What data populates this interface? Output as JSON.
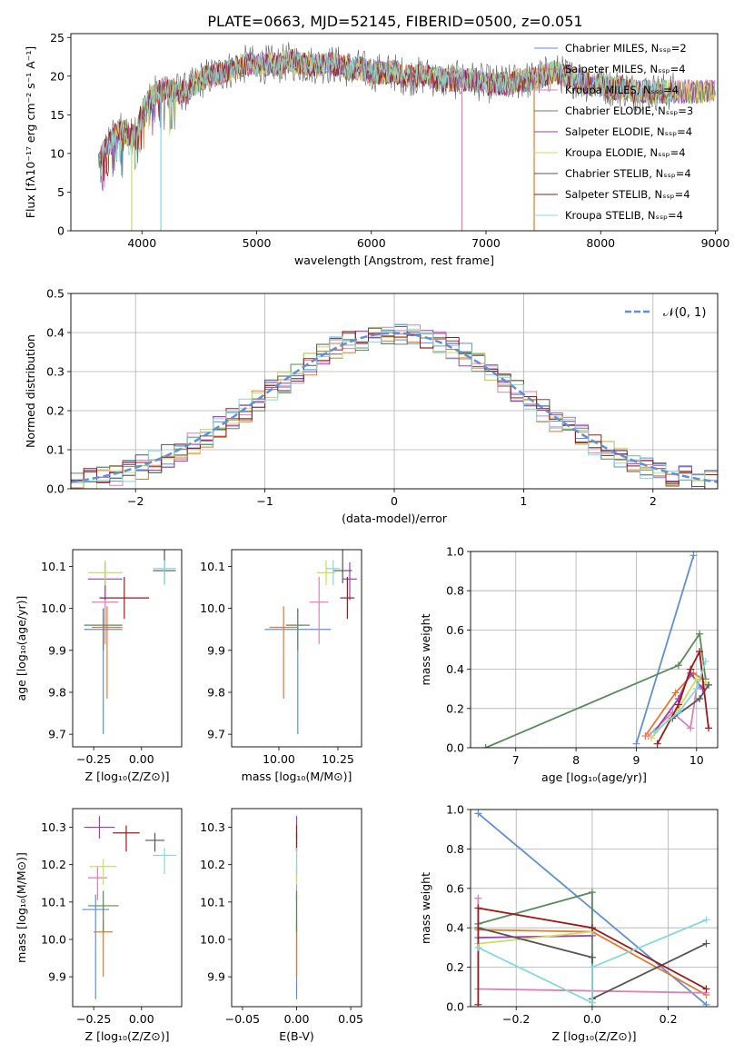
{
  "title": "PLATE=0663, MJD=52145, FIBERID=0500, z=0.051",
  "colors": [
    "#5f8fd8",
    "#e6782a",
    "#dd7fb8",
    "#5a8a5a",
    "#9a3fb8",
    "#c8e05a",
    "#555555",
    "#a01818",
    "#86d8dc"
  ],
  "chart_data": [
    {
      "type": "line",
      "id": "spectrum",
      "title": "PLATE=0663, MJD=52145, FIBERID=0500, z=0.051",
      "xlabel": "wavelength [Angstrom, rest frame]",
      "ylabel": "Flux [fλ10⁻¹⁷ erg cm⁻² s⁻¹ A⁻¹]",
      "xlim": [
        3380,
        9020
      ],
      "ylim": [
        0,
        25.5
      ],
      "xticks": [
        4000,
        5000,
        6000,
        7000,
        8000,
        9000
      ],
      "yticks": [
        0,
        5,
        10,
        15,
        20,
        25
      ],
      "grid": false,
      "legend_position": "top-right",
      "legend": [
        "Chabrier MILES, Nₛₛₚ=2",
        "Salpeter MILES, Nₛₛₚ=4",
        "Kroupa MILES, Nₛₛₚ=4",
        "Chabrier ELODIE, Nₛₛₚ=3",
        "Salpeter ELODIE, Nₛₛₚ=4",
        "Kroupa ELODIE, Nₛₛₚ=4",
        "Chabrier STELIB, Nₛₛₚ=4",
        "Salpeter STELIB, Nₛₛₚ=4",
        "Kroupa STELIB, Nₛₛₚ=4"
      ],
      "continuum": {
        "x": [
          3620,
          3700,
          3800,
          3900,
          3950,
          4000,
          4100,
          4200,
          4300,
          4400,
          4500,
          4600,
          4700,
          4800,
          4900,
          5000,
          5100,
          5200,
          5300,
          5400,
          5500,
          5600,
          5700,
          5800,
          5900,
          6000,
          6100,
          6200,
          6300,
          6400,
          6500,
          6600,
          6700,
          6800,
          6900,
          7000,
          7100,
          7200,
          7300,
          7400,
          7500,
          7600,
          7700,
          7800,
          7900,
          8000,
          8100,
          8200,
          8300,
          8400,
          8500,
          8600,
          8700,
          8800,
          8900,
          9000
        ],
        "y": [
          9,
          11,
          13,
          12.5,
          12,
          15.5,
          17.5,
          18.5,
          18,
          18,
          19.5,
          20,
          20.5,
          21,
          21.5,
          21.5,
          21.5,
          21.5,
          22,
          21.5,
          21.5,
          21.5,
          21.5,
          21,
          21,
          20.5,
          20.5,
          20.5,
          20,
          20,
          20,
          19.5,
          19.5,
          19.5,
          19.5,
          19,
          19,
          19,
          19.5,
          19.5,
          20,
          20.5,
          20,
          19.5,
          19,
          19,
          18.5,
          18.5,
          18,
          18,
          18,
          18,
          18,
          18,
          18,
          18
        ]
      },
      "stelib_end": 8650,
      "drops": [
        {
          "x": 3910,
          "to": 0
        },
        {
          "x": 4165,
          "to": 0
        },
        {
          "x": 6790,
          "to": 0
        },
        {
          "x": 7420,
          "to": 0
        }
      ]
    },
    {
      "type": "line",
      "id": "residuals",
      "xlabel": "(data-model)/error",
      "ylabel": "Normed distribution",
      "xlim": [
        -2.5,
        2.5
      ],
      "ylim": [
        0,
        0.5
      ],
      "xticks": [
        -2,
        -1,
        0,
        1,
        2
      ],
      "yticks": [
        0.0,
        0.1,
        0.2,
        0.3,
        0.4,
        0.5
      ],
      "grid": true,
      "legend_position": "top-right",
      "legend": [
        "𝒩(0, 1)"
      ],
      "bin_width": 0.1,
      "jitter": [
        0.03,
        -0.02,
        0.05,
        -0.04,
        0.02,
        -0.03,
        0.06,
        -0.01,
        0.01
      ]
    },
    {
      "type": "scatter",
      "id": "age-vs-Z",
      "xlabel": "Z [log₁₀(Z/Z⊙)]",
      "ylabel": "age  [log₁₀(age/yr)]",
      "xlim": [
        -0.36,
        0.21
      ],
      "ylim": [
        9.67,
        10.14
      ],
      "xticks": [
        -0.25,
        0.0
      ],
      "yticks": [
        9.7,
        9.8,
        9.9,
        10.0,
        10.1
      ],
      "grid": false,
      "points": [
        {
          "x": -0.2,
          "y": 9.95,
          "xerr": 0.1,
          "yerr": [
            0.25,
            0.05
          ]
        },
        {
          "x": -0.18,
          "y": 9.955,
          "xerr": 0.08,
          "yerr": [
            0.17,
            0.05
          ]
        },
        {
          "x": -0.19,
          "y": 10.015,
          "xerr": 0.07,
          "yerr": [
            0.1,
            0.06
          ]
        },
        {
          "x": -0.2,
          "y": 9.96,
          "xerr": 0.1,
          "yerr": [
            0.06,
            0.04
          ]
        },
        {
          "x": -0.19,
          "y": 10.07,
          "xerr": 0.09,
          "yerr": [
            0.05,
            0.04
          ]
        },
        {
          "x": -0.19,
          "y": 10.085,
          "xerr": 0.09,
          "yerr": [
            0.03,
            0.03
          ]
        },
        {
          "x": 0.12,
          "y": 10.09,
          "xerr": 0.06,
          "yerr": [
            0.03,
            0.05
          ]
        },
        {
          "x": -0.09,
          "y": 10.025,
          "xerr": 0.13,
          "yerr": [
            0.05,
            0.05
          ]
        },
        {
          "x": 0.12,
          "y": 10.095,
          "xerr": 0.06,
          "yerr": [
            0.04,
            0.02
          ]
        }
      ]
    },
    {
      "type": "scatter",
      "id": "age-vs-mass",
      "xlabel": "mass [log₁₀(M/M⊙)]",
      "ylabel": "",
      "xlim": [
        9.8,
        10.35
      ],
      "ylim": [
        9.67,
        10.14
      ],
      "xticks": [
        10.0,
        10.25
      ],
      "yticks": [
        9.7,
        9.8,
        9.9,
        10.0,
        10.1
      ],
      "grid": false,
      "points": [
        {
          "x": 10.08,
          "y": 9.95,
          "xerr": 0.14,
          "yerr": [
            0.25,
            0.05
          ]
        },
        {
          "x": 10.02,
          "y": 9.955,
          "xerr": 0.06,
          "yerr": [
            0.17,
            0.05
          ]
        },
        {
          "x": 10.17,
          "y": 10.015,
          "xerr": 0.04,
          "yerr": [
            0.1,
            0.06
          ]
        },
        {
          "x": 10.08,
          "y": 9.96,
          "xerr": 0.05,
          "yerr": [
            0.06,
            0.04
          ]
        },
        {
          "x": 10.3,
          "y": 10.07,
          "xerr": 0.03,
          "yerr": [
            0.05,
            0.04
          ]
        },
        {
          "x": 10.2,
          "y": 10.085,
          "xerr": 0.04,
          "yerr": [
            0.03,
            0.03
          ]
        },
        {
          "x": 10.27,
          "y": 10.09,
          "xerr": 0.04,
          "yerr": [
            0.03,
            0.05
          ]
        },
        {
          "x": 10.29,
          "y": 10.025,
          "xerr": 0.03,
          "yerr": [
            0.05,
            0.05
          ]
        },
        {
          "x": 10.23,
          "y": 10.095,
          "xerr": 0.03,
          "yerr": [
            0.04,
            0.02
          ]
        }
      ]
    },
    {
      "type": "line",
      "id": "weight-vs-age",
      "xlabel": "age  [log₁₀(age/yr)]",
      "ylabel": "mass weight",
      "xlim": [
        6.25,
        10.35
      ],
      "ylim": [
        0,
        1.0
      ],
      "xticks": [
        7,
        8,
        9,
        10
      ],
      "yticks": [
        0.0,
        0.2,
        0.4,
        0.6,
        0.8,
        1.0
      ],
      "grid": true,
      "series": [
        {
          "x": [
            9.0,
            9.95
          ],
          "y": [
            0.02,
            0.98
          ]
        },
        {
          "x": [
            9.15,
            9.65,
            9.95,
            10.1
          ],
          "y": [
            0.06,
            0.28,
            0.38,
            0.35
          ]
        },
        {
          "x": [
            9.2,
            9.6,
            9.9,
            10.0,
            10.15
          ],
          "y": [
            0.06,
            0.18,
            0.1,
            0.3,
            0.33
          ]
        },
        {
          "x": [
            6.5,
            9.7,
            10.05,
            10.15
          ],
          "y": [
            0.0,
            0.42,
            0.58,
            0.35
          ]
        },
        {
          "x": [
            9.3,
            9.7,
            9.9,
            10.1
          ],
          "y": [
            0.08,
            0.25,
            0.38,
            0.3
          ]
        },
        {
          "x": [
            9.25,
            9.7,
            10.0,
            10.15
          ],
          "y": [
            0.05,
            0.2,
            0.35,
            0.33
          ]
        },
        {
          "x": [
            9.6,
            10.05,
            10.2
          ],
          "y": [
            0.15,
            0.25,
            0.32
          ]
        },
        {
          "x": [
            9.35,
            9.7,
            9.9,
            10.05,
            10.2
          ],
          "y": [
            0.02,
            0.22,
            0.4,
            0.49,
            0.1
          ]
        },
        {
          "x": [
            9.3,
            9.7,
            10.0,
            10.15
          ],
          "y": [
            0.08,
            0.18,
            0.3,
            0.44
          ]
        }
      ]
    },
    {
      "type": "scatter",
      "id": "mass-vs-Z",
      "xlabel": "Z [log₁₀(Z/Z⊙)]",
      "ylabel": "mass [log₁₀(M/M⊙)]",
      "xlim": [
        -0.36,
        0.21
      ],
      "ylim": [
        9.82,
        10.35
      ],
      "xticks": [
        -0.25,
        0.0
      ],
      "yticks": [
        9.9,
        10.0,
        10.1,
        10.2,
        10.3
      ],
      "grid": false,
      "points": [
        {
          "x": -0.24,
          "y": 10.08,
          "xerr": 0.07,
          "yerr": [
            0.24,
            0.04
          ]
        },
        {
          "x": -0.2,
          "y": 10.02,
          "xerr": 0.05,
          "yerr": [
            0.12,
            0.03
          ]
        },
        {
          "x": -0.23,
          "y": 10.165,
          "xerr": 0.05,
          "yerr": [
            0.06,
            0.03
          ]
        },
        {
          "x": -0.2,
          "y": 10.09,
          "xerr": 0.08,
          "yerr": [
            0.07,
            0.04
          ]
        },
        {
          "x": -0.22,
          "y": 10.3,
          "xerr": 0.08,
          "yerr": [
            0.03,
            0.03
          ]
        },
        {
          "x": -0.2,
          "y": 10.195,
          "xerr": 0.07,
          "yerr": [
            0.05,
            0.02
          ]
        },
        {
          "x": 0.07,
          "y": 10.265,
          "xerr": 0.05,
          "yerr": [
            0.03,
            0.02
          ]
        },
        {
          "x": -0.08,
          "y": 10.285,
          "xerr": 0.07,
          "yerr": [
            0.05,
            0.02
          ]
        },
        {
          "x": 0.12,
          "y": 10.225,
          "xerr": 0.06,
          "yerr": [
            0.05,
            0.02
          ]
        }
      ]
    },
    {
      "type": "scatter",
      "id": "mass-vs-ebv",
      "xlabel": "E(B-V)",
      "ylabel": "",
      "xlim": [
        -0.06,
        0.06
      ],
      "ylim": [
        9.82,
        10.35
      ],
      "xticks": [
        -0.05,
        0.0,
        0.05
      ],
      "xtick_labels": [
        "−0.05",
        "0.00",
        "0.05"
      ],
      "yticks": [
        9.9,
        10.0,
        10.1,
        10.2,
        10.3
      ],
      "grid": false,
      "points": [
        {
          "x": 0.0,
          "y": 10.08,
          "xerr": 0.0,
          "yerr": [
            0.24,
            0.04
          ]
        },
        {
          "x": 0.0,
          "y": 10.02,
          "xerr": 0.0,
          "yerr": [
            0.12,
            0.03
          ]
        },
        {
          "x": 0.0,
          "y": 10.165,
          "xerr": 0.0,
          "yerr": [
            0.06,
            0.03
          ]
        },
        {
          "x": 0.0,
          "y": 10.09,
          "xerr": 0.0,
          "yerr": [
            0.07,
            0.04
          ]
        },
        {
          "x": 0.0,
          "y": 10.3,
          "xerr": 0.0,
          "yerr": [
            0.03,
            0.03
          ]
        },
        {
          "x": 0.0,
          "y": 10.195,
          "xerr": 0.0,
          "yerr": [
            0.05,
            0.02
          ]
        },
        {
          "x": 0.0,
          "y": 10.265,
          "xerr": 0.0,
          "yerr": [
            0.03,
            0.02
          ]
        },
        {
          "x": 0.0,
          "y": 10.285,
          "xerr": 0.0,
          "yerr": [
            0.05,
            0.02
          ]
        },
        {
          "x": 0.0,
          "y": 10.225,
          "xerr": 0.0,
          "yerr": [
            0.05,
            0.02
          ]
        }
      ]
    },
    {
      "type": "line",
      "id": "weight-vs-Z",
      "xlabel": "Z [log₁₀(Z/Z⊙)]",
      "ylabel": "mass weight",
      "xlim": [
        -0.32,
        0.33
      ],
      "ylim": [
        0,
        1.0
      ],
      "xticks": [
        -0.2,
        0.0,
        0.2
      ],
      "xtick_labels": [
        "−0.2",
        "0.0",
        "0.2"
      ],
      "yticks": [
        0.0,
        0.2,
        0.4,
        0.6,
        0.8,
        1.0
      ],
      "grid": true,
      "series": [
        {
          "x": [
            -0.3,
            0.3
          ],
          "y": [
            0.98,
            0.01
          ]
        },
        {
          "x": [
            -0.3,
            0.0,
            0.3
          ],
          "y": [
            0.39,
            0.38,
            0.06
          ]
        },
        {
          "x": [
            -0.3,
            -0.3,
            0.0,
            0.3
          ],
          "y": [
            0.55,
            0.09,
            0.08,
            0.07
          ]
        },
        {
          "x": [
            -0.3,
            0.0,
            0.0
          ],
          "y": [
            0.42,
            0.58,
            0.0
          ]
        },
        {
          "x": [
            -0.3,
            0.0,
            0.0
          ],
          "y": [
            0.35,
            0.36,
            0.4
          ]
        },
        {
          "x": [
            -0.3,
            0.0
          ],
          "y": [
            0.32,
            0.38
          ]
        },
        {
          "x": [
            -0.3,
            0.0,
            0.0,
            0.3
          ],
          "y": [
            0.4,
            0.25,
            0.04,
            0.32
          ]
        },
        {
          "x": [
            -0.3,
            -0.3,
            0.0,
            0.3
          ],
          "y": [
            0.01,
            0.5,
            0.4,
            0.09
          ]
        },
        {
          "x": [
            -0.3,
            0.0,
            0.0,
            0.3
          ],
          "y": [
            0.3,
            0.02,
            0.2,
            0.44
          ]
        }
      ]
    }
  ]
}
